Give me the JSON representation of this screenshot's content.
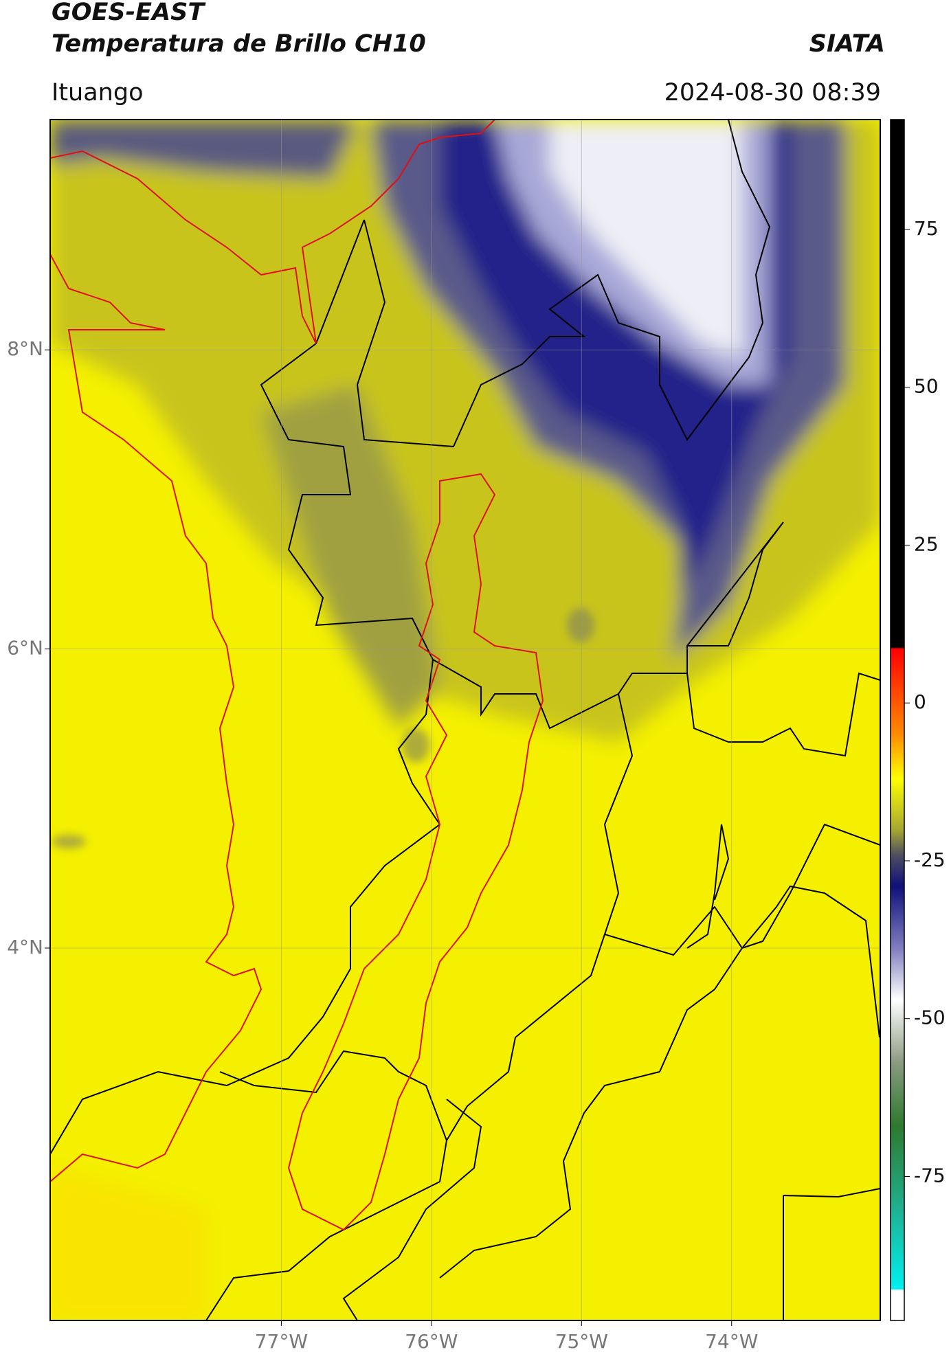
{
  "header": {
    "title": "GOES-EAST",
    "subtitle": "Temperatura de Brillo CH10",
    "source": "SIATA",
    "location": "Ituango",
    "timestamp": "2024-08-30 08:39"
  },
  "map": {
    "xlim": [
      -78.54,
      -73.01
    ],
    "ylim": [
      1.51,
      9.54
    ],
    "xticks": [
      {
        "value": -77,
        "label": "77°W"
      },
      {
        "value": -76,
        "label": "76°W"
      },
      {
        "value": -75,
        "label": "75°W"
      },
      {
        "value": -74,
        "label": "74°W"
      }
    ],
    "yticks": [
      {
        "value": 8,
        "label": "8°N"
      },
      {
        "value": 6,
        "label": "6°N"
      },
      {
        "value": 4,
        "label": "4°N"
      }
    ]
  },
  "colorbar": {
    "ylim": [
      -97.8,
      92.4
    ],
    "yticks": [
      75,
      50,
      25,
      0,
      -25,
      -50,
      -75
    ],
    "stops": [
      {
        "value": 92.4,
        "color": "#000000"
      },
      {
        "value": 8.8,
        "color": "#000000"
      },
      {
        "value": 8.6,
        "color": "#ff0000"
      },
      {
        "value": -5,
        "color": "#ff8c00"
      },
      {
        "value": -12,
        "color": "#ffff00"
      },
      {
        "value": -20,
        "color": "#a8a830"
      },
      {
        "value": -24,
        "color": "#505060"
      },
      {
        "value": -29,
        "color": "#10107a"
      },
      {
        "value": -39,
        "color": "#8080c0"
      },
      {
        "value": -47,
        "color": "#ffffff"
      },
      {
        "value": -57,
        "color": "#8a9a80"
      },
      {
        "value": -67,
        "color": "#2e7a2e"
      },
      {
        "value": -80,
        "color": "#1fb090"
      },
      {
        "value": -92.8,
        "color": "#00f0f0"
      },
      {
        "value": -93,
        "color": "#ffffff"
      },
      {
        "value": -97.8,
        "color": "#ffffff"
      }
    ]
  }
}
